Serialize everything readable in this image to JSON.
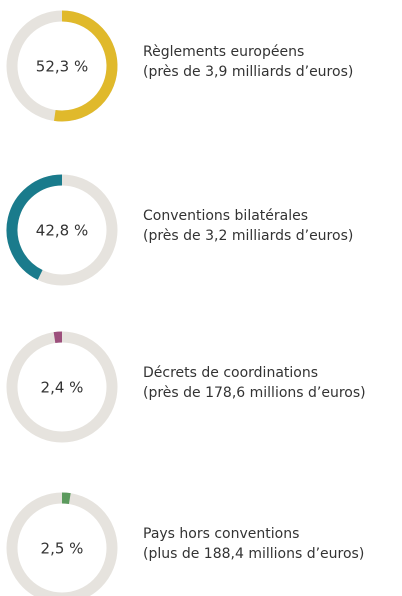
{
  "chart_data": [
    {
      "type": "donut",
      "values": [
        52.3
      ],
      "value_labels": [
        "52,3 %"
      ],
      "color": "#e0b92b",
      "track_color": "#e6e3de",
      "direction": "clockwise",
      "title": "Règlements européens",
      "subtitle": "(près de 3,9 milliards d’euros)"
    },
    {
      "type": "donut",
      "values": [
        42.8
      ],
      "value_labels": [
        "42,8 %"
      ],
      "color": "#1a7b8c",
      "track_color": "#e6e3de",
      "direction": "counterclockwise",
      "title": "Conventions bilatérales",
      "subtitle": "(près de 3,2 milliards d’euros)"
    },
    {
      "type": "donut",
      "values": [
        2.4
      ],
      "value_labels": [
        "2,4 %"
      ],
      "color": "#9c4f7c",
      "track_color": "#e6e3de",
      "direction": "counterclockwise",
      "title": "Décrets de coordinations",
      "subtitle": "(près de 178,6 millions d’euros)"
    },
    {
      "type": "donut",
      "values": [
        2.5
      ],
      "value_labels": [
        "2,5 %"
      ],
      "color": "#5b9a5d",
      "track_color": "#e6e3de",
      "direction": "clockwise",
      "title": "Pays hors conventions",
      "subtitle": "(plus de 188,4 millions d’euros)"
    }
  ]
}
